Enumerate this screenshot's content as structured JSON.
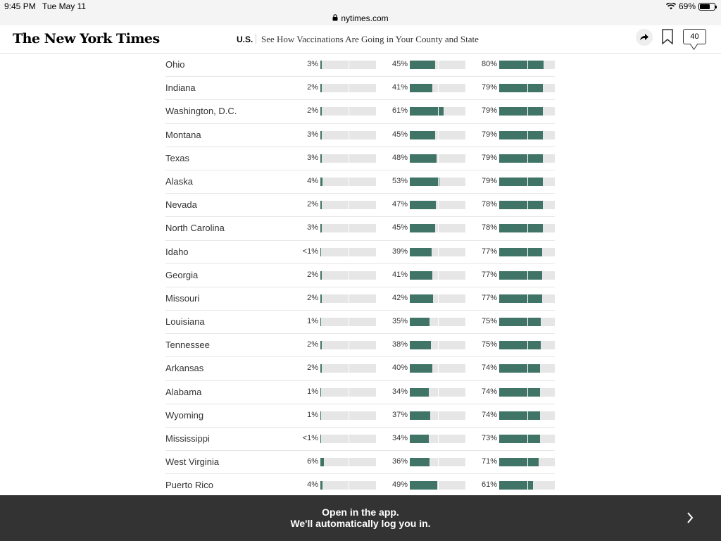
{
  "status": {
    "time": "9:45 PM",
    "date": "Tue May 11",
    "battery": "69%"
  },
  "url": {
    "domain": "nytimes.com"
  },
  "header": {
    "logo": "The New York Times",
    "section": "U.S.",
    "headline": "See How Vaccinations Are Going in Your County and State",
    "comments_count": "40"
  },
  "rows": [
    {
      "name": "Ohio",
      "a": "3%",
      "av": 3,
      "b": "45%",
      "bv": 45,
      "c": "80%",
      "cv": 80
    },
    {
      "name": "Indiana",
      "a": "2%",
      "av": 2,
      "b": "41%",
      "bv": 41,
      "c": "79%",
      "cv": 79
    },
    {
      "name": "Washington, D.C.",
      "a": "2%",
      "av": 2,
      "b": "61%",
      "bv": 61,
      "c": "79%",
      "cv": 79
    },
    {
      "name": "Montana",
      "a": "3%",
      "av": 3,
      "b": "45%",
      "bv": 45,
      "c": "79%",
      "cv": 79
    },
    {
      "name": "Texas",
      "a": "3%",
      "av": 3,
      "b": "48%",
      "bv": 48,
      "c": "79%",
      "cv": 79
    },
    {
      "name": "Alaska",
      "a": "4%",
      "av": 4,
      "b": "53%",
      "bv": 53,
      "c": "79%",
      "cv": 79
    },
    {
      "name": "Nevada",
      "a": "2%",
      "av": 2,
      "b": "47%",
      "bv": 47,
      "c": "78%",
      "cv": 78
    },
    {
      "name": "North Carolina",
      "a": "3%",
      "av": 3,
      "b": "45%",
      "bv": 45,
      "c": "78%",
      "cv": 78
    },
    {
      "name": "Idaho",
      "a": "<1%",
      "av": 0.5,
      "b": "39%",
      "bv": 39,
      "c": "77%",
      "cv": 77
    },
    {
      "name": "Georgia",
      "a": "2%",
      "av": 2,
      "b": "41%",
      "bv": 41,
      "c": "77%",
      "cv": 77
    },
    {
      "name": "Missouri",
      "a": "2%",
      "av": 2,
      "b": "42%",
      "bv": 42,
      "c": "77%",
      "cv": 77
    },
    {
      "name": "Louisiana",
      "a": "1%",
      "av": 1,
      "b": "35%",
      "bv": 35,
      "c": "75%",
      "cv": 75
    },
    {
      "name": "Tennessee",
      "a": "2%",
      "av": 2,
      "b": "38%",
      "bv": 38,
      "c": "75%",
      "cv": 75
    },
    {
      "name": "Arkansas",
      "a": "2%",
      "av": 2,
      "b": "40%",
      "bv": 40,
      "c": "74%",
      "cv": 74
    },
    {
      "name": "Alabama",
      "a": "1%",
      "av": 1,
      "b": "34%",
      "bv": 34,
      "c": "74%",
      "cv": 74
    },
    {
      "name": "Wyoming",
      "a": "1%",
      "av": 1,
      "b": "37%",
      "bv": 37,
      "c": "74%",
      "cv": 74
    },
    {
      "name": "Mississippi",
      "a": "<1%",
      "av": 0.5,
      "b": "34%",
      "bv": 34,
      "c": "73%",
      "cv": 73
    },
    {
      "name": "West Virginia",
      "a": "6%",
      "av": 6,
      "b": "36%",
      "bv": 36,
      "c": "71%",
      "cv": 71
    },
    {
      "name": "Puerto Rico",
      "a": "4%",
      "av": 4,
      "b": "49%",
      "bv": 49,
      "c": "61%",
      "cv": 61
    }
  ],
  "banner": {
    "line1": "Open in the app.",
    "line2": "We'll automatically log you in."
  },
  "colors": {
    "bar_fill": "#3f7466",
    "bar_track": "#e6e6e6",
    "banner_bg": "#333333"
  },
  "icons": [
    "wifi-icon",
    "battery-icon",
    "lock-icon",
    "share-icon",
    "bookmark-icon",
    "comment-icon",
    "chevron-right-icon"
  ]
}
